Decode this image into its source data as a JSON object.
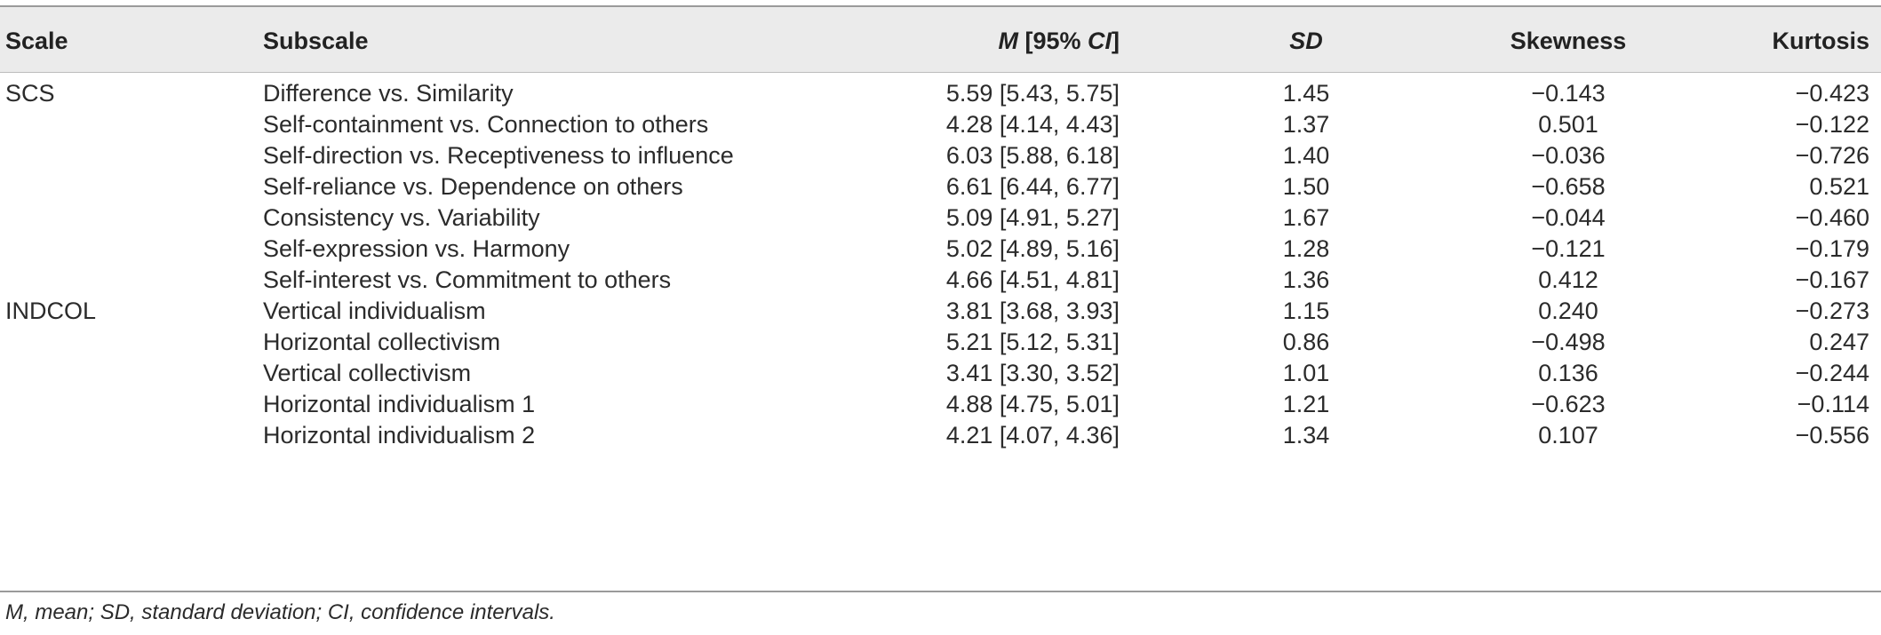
{
  "headers": {
    "scale": "Scale",
    "subscale": "Subscale",
    "m_italic": "M",
    "m_mid": " [95% ",
    "m_ci": "CI",
    "m_end": "]",
    "sd": "SD",
    "skewness": "Skewness",
    "kurtosis": "Kurtosis"
  },
  "rows": [
    {
      "scale": "SCS",
      "subscale": "Difference vs. Similarity",
      "m": "5.59 [5.43, 5.75]",
      "sd": "1.45",
      "skewness": "−0.143",
      "kurtosis": "−0.423"
    },
    {
      "scale": "",
      "subscale": "Self-containment vs. Connection to others",
      "m": "4.28 [4.14, 4.43]",
      "sd": "1.37",
      "skewness": "0.501",
      "kurtosis": "−0.122"
    },
    {
      "scale": "",
      "subscale": "Self-direction vs. Receptiveness to influence",
      "m": "6.03 [5.88, 6.18]",
      "sd": "1.40",
      "skewness": "−0.036",
      "kurtosis": "−0.726"
    },
    {
      "scale": "",
      "subscale": "Self-reliance vs. Dependence on others",
      "m": "6.61 [6.44, 6.77]",
      "sd": "1.50",
      "skewness": "−0.658",
      "kurtosis": "0.521"
    },
    {
      "scale": "",
      "subscale": "Consistency vs. Variability",
      "m": "5.09 [4.91, 5.27]",
      "sd": "1.67",
      "skewness": "−0.044",
      "kurtosis": "−0.460"
    },
    {
      "scale": "",
      "subscale": "Self-expression vs. Harmony",
      "m": "5.02 [4.89, 5.16]",
      "sd": "1.28",
      "skewness": "−0.121",
      "kurtosis": "−0.179"
    },
    {
      "scale": "",
      "subscale": "Self-interest vs. Commitment to others",
      "m": "4.66 [4.51, 4.81]",
      "sd": "1.36",
      "skewness": "0.412",
      "kurtosis": "−0.167"
    },
    {
      "scale": "INDCOL",
      "subscale": "Vertical individualism",
      "m": "3.81 [3.68, 3.93]",
      "sd": "1.15",
      "skewness": "0.240",
      "kurtosis": "−0.273"
    },
    {
      "scale": "",
      "subscale": "Horizontal collectivism",
      "m": "5.21 [5.12, 5.31]",
      "sd": "0.86",
      "skewness": "−0.498",
      "kurtosis": "0.247"
    },
    {
      "scale": "",
      "subscale": "Vertical collectivism",
      "m": "3.41 [3.30, 3.52]",
      "sd": "1.01",
      "skewness": "0.136",
      "kurtosis": "−0.244"
    },
    {
      "scale": "",
      "subscale": "Horizontal individualism 1",
      "m": "4.88 [4.75, 5.01]",
      "sd": "1.21",
      "skewness": "−0.623",
      "kurtosis": "−0.114"
    },
    {
      "scale": "",
      "subscale": "Horizontal individualism 2",
      "m": "4.21 [4.07, 4.36]",
      "sd": "1.34",
      "skewness": "0.107",
      "kurtosis": "−0.556"
    }
  ],
  "footnote": "M, mean; SD, standard deviation; CI, confidence intervals."
}
